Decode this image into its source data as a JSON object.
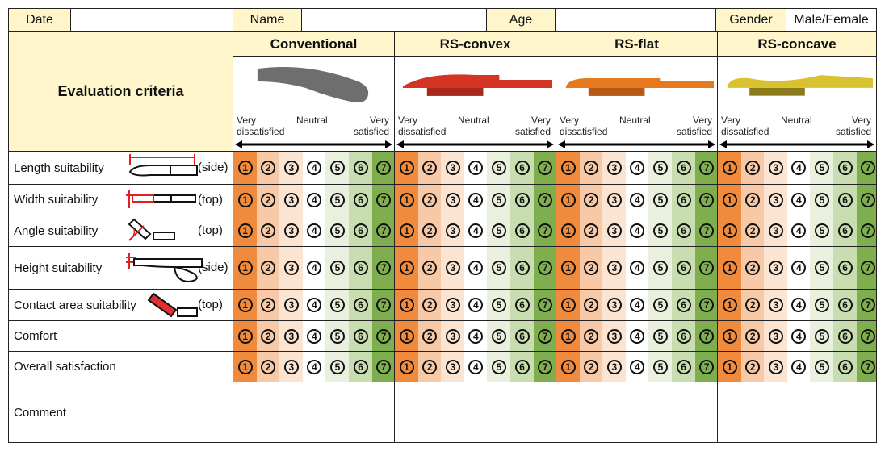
{
  "info": {
    "date_label": "Date",
    "date_value": "",
    "name_label": "Name",
    "name_value": "",
    "age_label": "Age",
    "age_value": "",
    "gender_label": "Gender",
    "gender_value": "Male/Female"
  },
  "criteria_header": "Evaluation criteria",
  "scale": {
    "left": "Very dissatisfied",
    "left_line1": "Very",
    "left_line2": "dissatisfied",
    "middle": "Neutral",
    "right_line1": "Very",
    "right_line2": "satisfied"
  },
  "products": [
    {
      "name": "Conventional",
      "color": "#6e6e6e"
    },
    {
      "name": "RS-convex",
      "color": "#d43424"
    },
    {
      "name": "RS-flat",
      "color": "#e6781e"
    },
    {
      "name": "RS-concave",
      "color": "#d9c230"
    }
  ],
  "rows": [
    {
      "label": "Length suitability",
      "view": "(side)",
      "icon": "length-diagram-icon"
    },
    {
      "label": "Width suitability",
      "view": "(top)",
      "icon": "width-diagram-icon"
    },
    {
      "label": "Angle suitability",
      "view": "(top)",
      "icon": "angle-diagram-icon"
    },
    {
      "label": "Height suitability",
      "view": "(side)",
      "icon": "height-diagram-icon"
    },
    {
      "label": "Contact area suitability",
      "view": "(top)",
      "icon": "contact-area-diagram-icon"
    },
    {
      "label": "Comfort",
      "view": "",
      "icon": ""
    },
    {
      "label": "Overall satisfaction",
      "view": "",
      "icon": ""
    }
  ],
  "comment_label": "Comment",
  "ratings": [
    "①",
    "②",
    "③",
    "④",
    "⑤",
    "⑥",
    "⑦"
  ],
  "rating_colors": [
    "#f08a3c",
    "#f8c9a6",
    "#fbe4d2",
    "#ffffff",
    "#e9f1de",
    "#c9deb0",
    "#7fae4e"
  ]
}
